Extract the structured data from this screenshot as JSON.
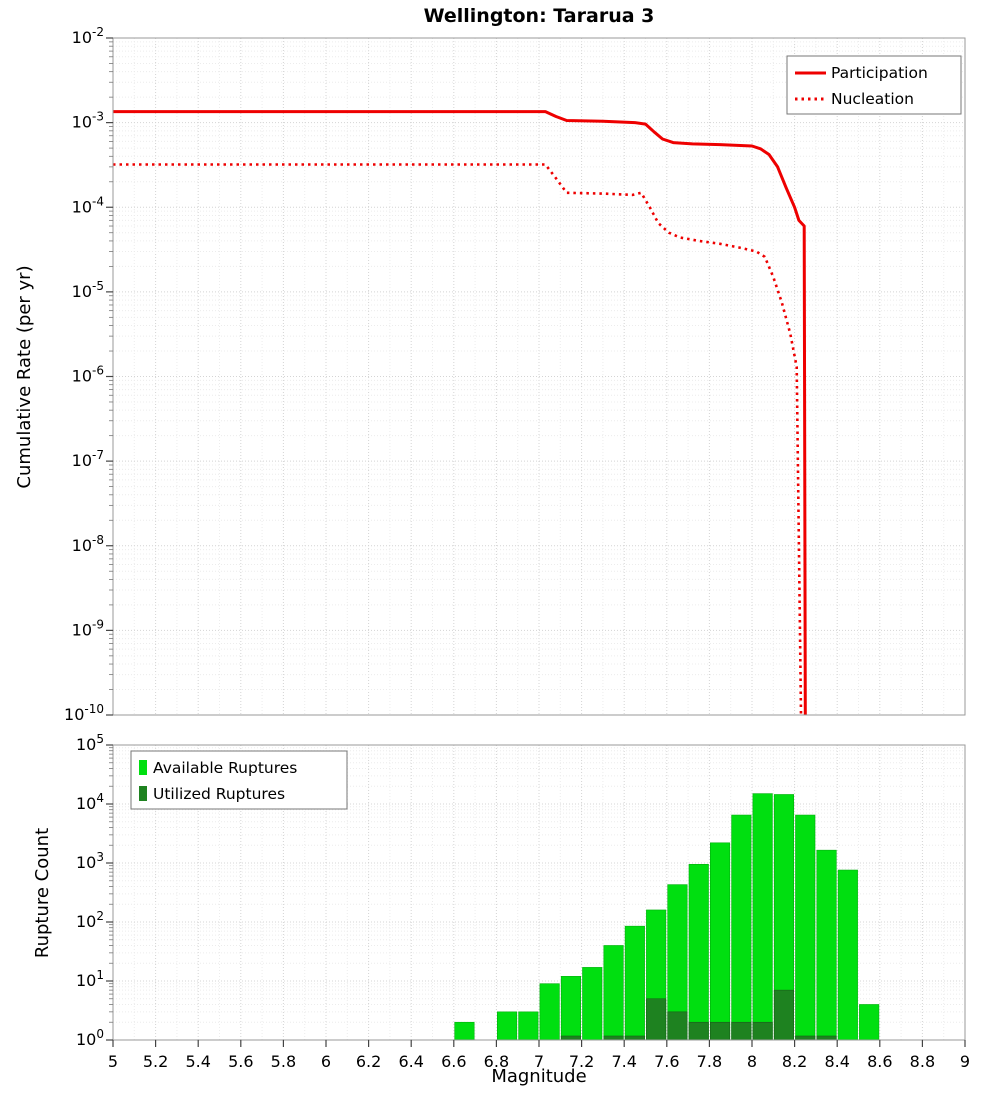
{
  "title": "Wellington: Tararua 3",
  "colors": {
    "line_red": "#ee0000",
    "available_green": "#00df10",
    "utilized_green": "#1e8220",
    "grid_major": "#d4d4d4",
    "grid_minor": "#ececec",
    "frame": "#9a9a9a"
  },
  "chart_data": [
    {
      "type": "line",
      "title": "Wellington: Tararua 3",
      "ylabel": "Cumulative Rate (per yr)",
      "xlabel": "",
      "xlim": [
        5,
        9
      ],
      "ylim_log": [
        -10,
        -2
      ],
      "y_tick_exponents": [
        -2,
        -3,
        -4,
        -5,
        -6,
        -7,
        -8,
        -9,
        -10
      ],
      "grid": true,
      "legend_position": "top-right",
      "series": [
        {
          "name": "Participation",
          "style": "solid",
          "color": "#ee0000",
          "points": [
            [
              5.0,
              0.00135
            ],
            [
              7.03,
              0.00135
            ],
            [
              7.08,
              0.00118
            ],
            [
              7.13,
              0.00106
            ],
            [
              7.3,
              0.00104
            ],
            [
              7.45,
              0.001
            ],
            [
              7.5,
              0.00096
            ],
            [
              7.54,
              0.00078
            ],
            [
              7.58,
              0.00064
            ],
            [
              7.63,
              0.00058
            ],
            [
              7.72,
              0.00056
            ],
            [
              7.85,
              0.00055
            ],
            [
              8.0,
              0.00053
            ],
            [
              8.04,
              0.00049
            ],
            [
              8.08,
              0.00042
            ],
            [
              8.12,
              0.0003
            ],
            [
              8.16,
              0.00017
            ],
            [
              8.2,
              0.0001
            ],
            [
              8.22,
              7e-05
            ],
            [
              8.245,
              6e-05
            ],
            [
              8.25,
              1e-10
            ]
          ]
        },
        {
          "name": "Nucleation",
          "style": "dotted",
          "color": "#ee0000",
          "points": [
            [
              5.0,
              0.00032
            ],
            [
              7.03,
              0.00032
            ],
            [
              7.08,
              0.00022
            ],
            [
              7.13,
              0.000148
            ],
            [
              7.3,
              0.000145
            ],
            [
              7.44,
              0.00014
            ],
            [
              7.48,
              0.000148
            ],
            [
              7.52,
              0.0001
            ],
            [
              7.56,
              6.5e-05
            ],
            [
              7.61,
              5e-05
            ],
            [
              7.66,
              4.4e-05
            ],
            [
              7.75,
              4e-05
            ],
            [
              7.85,
              3.7e-05
            ],
            [
              7.95,
              3.3e-05
            ],
            [
              8.02,
              3e-05
            ],
            [
              8.06,
              2.6e-05
            ],
            [
              8.1,
              1.5e-05
            ],
            [
              8.14,
              7.5e-06
            ],
            [
              8.18,
              3.2e-06
            ],
            [
              8.21,
              1.3e-06
            ],
            [
              8.23,
              1e-10
            ]
          ]
        }
      ]
    },
    {
      "type": "bar",
      "ylabel": "Rupture Count",
      "xlabel": "Magnitude",
      "xlim": [
        5,
        9
      ],
      "ylim_log": [
        0,
        5
      ],
      "y_tick_exponents": [
        0,
        1,
        2,
        3,
        4,
        5
      ],
      "x_ticks": [
        5,
        5.2,
        5.4,
        5.6,
        5.8,
        6,
        6.2,
        6.4,
        6.6,
        6.8,
        7,
        7.2,
        7.4,
        7.6,
        7.8,
        8,
        8.2,
        8.4,
        8.6,
        8.8,
        9
      ],
      "x_tick_labels": [
        "5",
        "5.2",
        "5.4",
        "5.6",
        "5.8",
        "6",
        "6.2",
        "6.4",
        "6.6",
        "6.8",
        "7",
        "7.2",
        "7.4",
        "7.6",
        "7.8",
        "8",
        "8.2",
        "8.4",
        "8.6",
        "8.8",
        "9"
      ],
      "bar_width": 0.1,
      "grid": true,
      "legend_position": "top-left",
      "series": [
        {
          "name": "Available Ruptures",
          "color": "#00df10",
          "edge": "#00b00c",
          "bars": [
            [
              6.65,
              2
            ],
            [
              6.85,
              3
            ],
            [
              6.95,
              3
            ],
            [
              7.05,
              9
            ],
            [
              7.15,
              12
            ],
            [
              7.25,
              17
            ],
            [
              7.35,
              40
            ],
            [
              7.45,
              85
            ],
            [
              7.55,
              160
            ],
            [
              7.65,
              430
            ],
            [
              7.75,
              950
            ],
            [
              7.85,
              2200
            ],
            [
              7.95,
              6500
            ],
            [
              8.05,
              15000
            ],
            [
              8.15,
              14500
            ],
            [
              8.25,
              6500
            ],
            [
              8.35,
              1650
            ],
            [
              8.45,
              760
            ],
            [
              8.55,
              4
            ]
          ]
        },
        {
          "name": "Utilized Ruptures",
          "color": "#1e8220",
          "edge": "#166018",
          "bars": [
            [
              7.15,
              1
            ],
            [
              7.35,
              1
            ],
            [
              7.45,
              1
            ],
            [
              7.55,
              5
            ],
            [
              7.65,
              3
            ],
            [
              7.75,
              2
            ],
            [
              7.85,
              2
            ],
            [
              7.95,
              2
            ],
            [
              8.05,
              2
            ],
            [
              8.15,
              7
            ],
            [
              8.25,
              1
            ],
            [
              8.35,
              1
            ]
          ]
        }
      ]
    }
  ]
}
